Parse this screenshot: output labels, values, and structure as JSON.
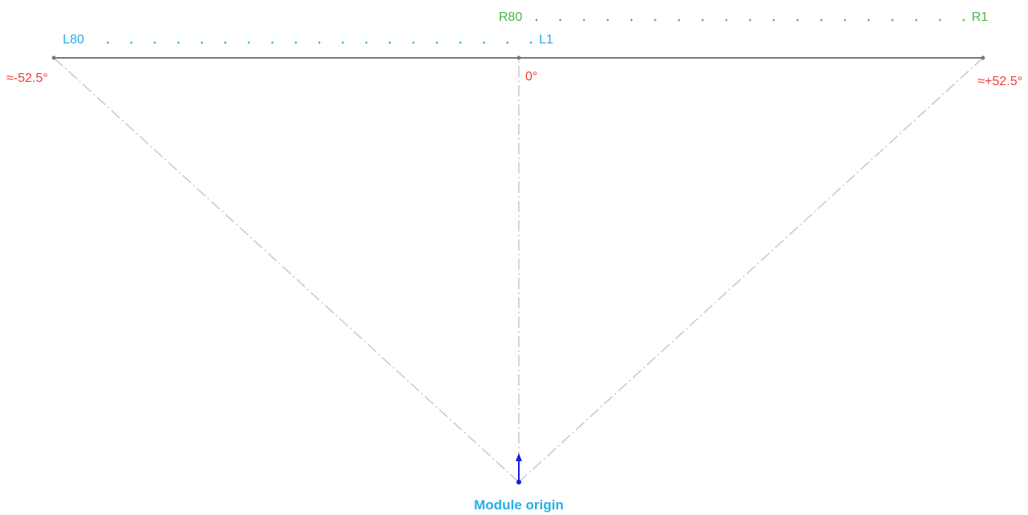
{
  "colors": {
    "background": "#ffffff",
    "left_channels": "#29aee6",
    "right_channels": "#4cb54a",
    "angle_labels": "#f23a3a",
    "baseline": "#7a7a7a",
    "guide_lines": "#c8c8c8",
    "origin_marker": "#1a1ae0",
    "origin_label": "#29aee6"
  },
  "left_channels": {
    "start_label": "L80",
    "end_label": "L1"
  },
  "right_channels": {
    "start_label": "R80",
    "end_label": "R1"
  },
  "angles": {
    "left": "≈-52.5°",
    "center": "0°",
    "right": "≈+52.5°"
  },
  "origin": {
    "label": "Module origin"
  }
}
